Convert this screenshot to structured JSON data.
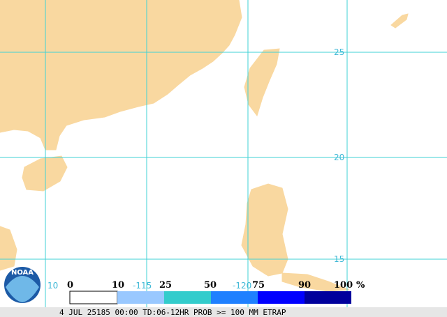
{
  "map": {
    "lat_labels": [
      "25",
      "20",
      "15"
    ],
    "lon_labels": [
      "-115",
      "-120",
      "10"
    ],
    "logo": "NOAA",
    "legend": {
      "values": [
        0,
        10,
        25,
        50,
        75,
        90,
        100
      ],
      "unit": "%"
    },
    "footer": "4 JUL 25185 00:00 TD:06-12HR PROB >= 100 MM ETRAP"
  }
}
